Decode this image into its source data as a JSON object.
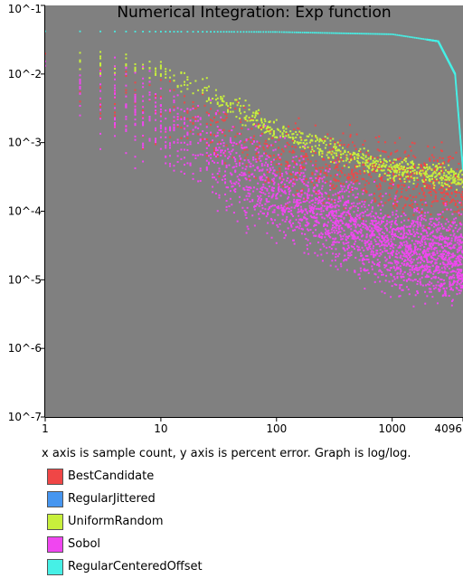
{
  "chart_data": {
    "type": "scatter",
    "title": "Numerical Integration: Exp function",
    "x_scale": "log",
    "y_scale": "log",
    "xlim": [
      1,
      4096
    ],
    "ylim": [
      1e-07,
      0.1
    ],
    "x_ticks": [
      {
        "value": 1,
        "label": "1"
      },
      {
        "value": 10,
        "label": "10"
      },
      {
        "value": 100,
        "label": "100"
      },
      {
        "value": 1000,
        "label": "1000"
      },
      {
        "value": 4096,
        "label": "4096"
      }
    ],
    "y_ticks": [
      {
        "value": 0.1,
        "label": "10^-1"
      },
      {
        "value": 0.01,
        "label": "10^-2"
      },
      {
        "value": 0.001,
        "label": "10^-3"
      },
      {
        "value": 0.0001,
        "label": "10^-4"
      },
      {
        "value": 1e-05,
        "label": "10^-5"
      },
      {
        "value": 1e-06,
        "label": "10^-6"
      },
      {
        "value": 1e-07,
        "label": "10^-7"
      }
    ],
    "caption": "x axis is sample count, y axis is percent error. Graph is log/log.",
    "grid": false,
    "plot_background": "#808080",
    "legend_position": "below",
    "series": [
      {
        "name": "BestCandidate",
        "color": "#f04646",
        "trend": [
          [
            1,
            0.01
          ],
          [
            10,
            0.003
          ],
          [
            100,
            0.0006
          ],
          [
            1000,
            0.0003
          ],
          [
            4096,
            0.0002
          ]
        ]
      },
      {
        "name": "RegularJittered",
        "color": "#4696f0",
        "trend": []
      },
      {
        "name": "UniformRandom",
        "color": "#c8f03c",
        "trend": [
          [
            1,
            0.015
          ],
          [
            10,
            0.012
          ],
          [
            100,
            0.0015
          ],
          [
            1000,
            0.0004
          ],
          [
            4096,
            0.0003
          ]
        ]
      },
      {
        "name": "Sobol",
        "color": "#f046f0",
        "trend": [
          [
            1,
            0.01
          ],
          [
            10,
            0.002
          ],
          [
            100,
            0.0002
          ],
          [
            1000,
            3e-05
          ],
          [
            4096,
            2e-05
          ]
        ]
      },
      {
        "name": "RegularCenteredOffset",
        "color": "#46f0e6",
        "trend": [
          [
            1,
            0.042
          ],
          [
            100,
            0.041
          ],
          [
            1000,
            0.038
          ],
          [
            2500,
            0.03
          ],
          [
            3500,
            0.01
          ],
          [
            4096,
            0.0004
          ]
        ]
      }
    ]
  }
}
